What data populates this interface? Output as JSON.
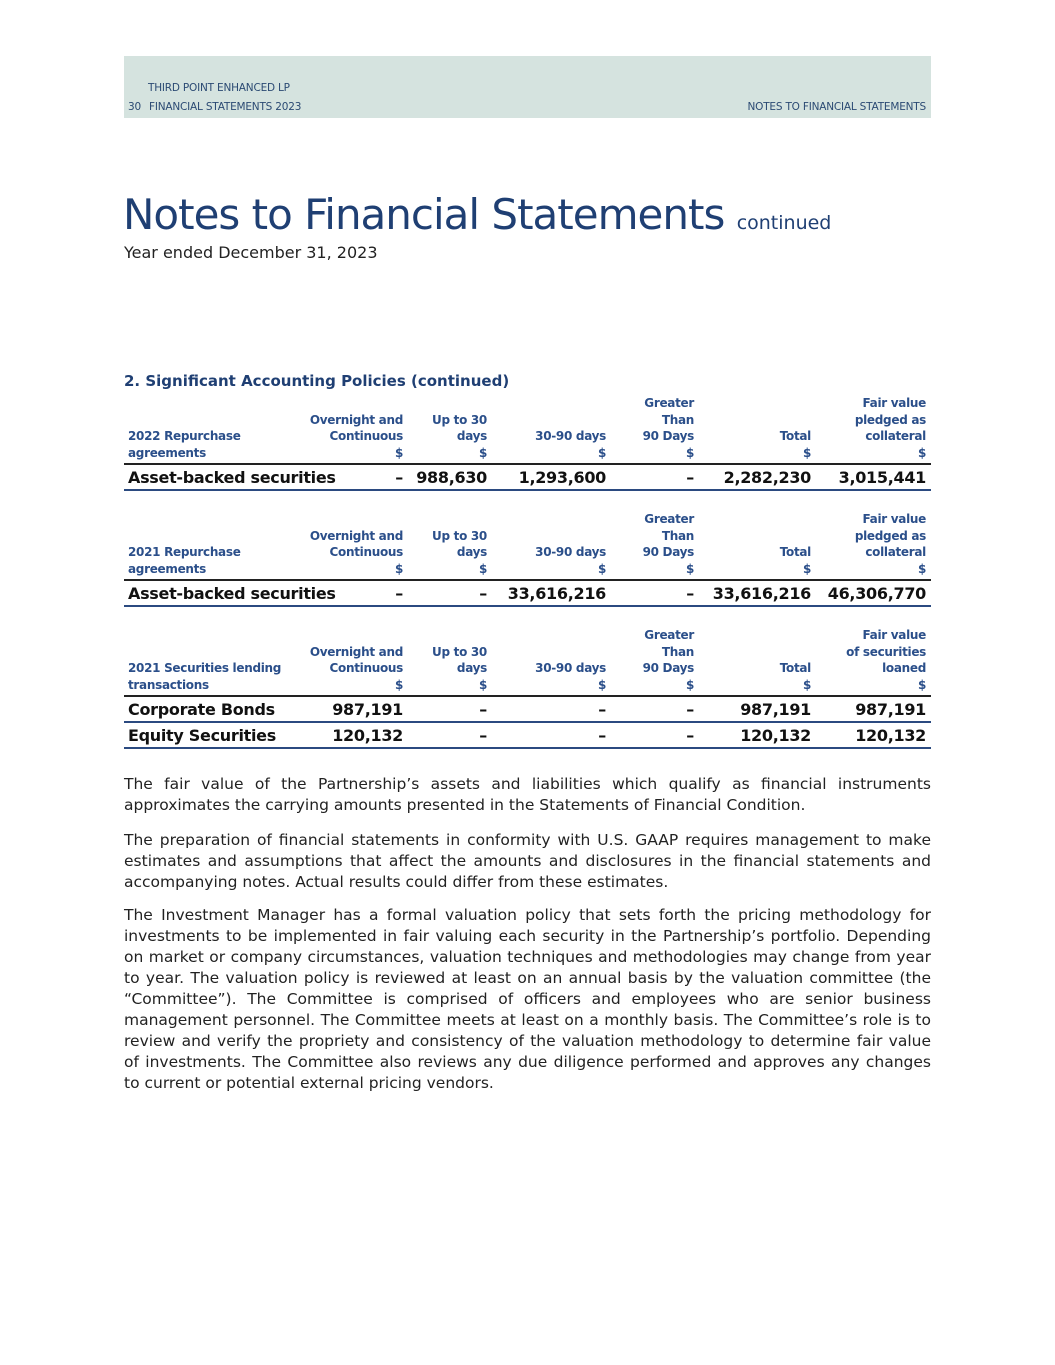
{
  "header": {
    "company": "THIRD POINT ENHANCED LP",
    "page_number": "30",
    "report": "FINANCIAL STATEMENTS 2023",
    "section": "NOTES TO FINANCIAL STATEMENTS",
    "band_color": "#d5e3df"
  },
  "title": {
    "main": "Notes to Financial Statements",
    "suffix": "continued",
    "subtitle": "Year ended December 31, 2023"
  },
  "section_heading": "2. Significant Accounting Policies (continued)",
  "tables": [
    {
      "headers": [
        "2022 Repurchase\nagreements",
        "Overnight and\nContinuous\n$",
        "Up to 30\ndays\n$",
        "30-90 days\n$",
        "Greater\nThan\n90 Days\n$",
        "Total\n$",
        "Fair value\npledged as\ncollateral\n$"
      ],
      "rows": [
        [
          "Asset-backed securities",
          "–",
          "988,630",
          "1,293,600",
          "–",
          "2,282,230",
          "3,015,441"
        ]
      ]
    },
    {
      "headers": [
        "2021 Repurchase\nagreements",
        "Overnight and\nContinuous\n$",
        "Up to 30\ndays\n$",
        "30-90 days\n$",
        "Greater\nThan\n90 Days\n$",
        "Total\n$",
        "Fair value\npledged as\ncollateral\n$"
      ],
      "rows": [
        [
          "Asset-backed securities",
          "–",
          "–",
          "33,616,216",
          "–",
          "33,616,216",
          "46,306,770"
        ]
      ]
    },
    {
      "headers": [
        "2021 Securities lending\ntransactions",
        "Overnight and\nContinuous\n$",
        "Up to 30\ndays\n$",
        "30-90 days\n$",
        "Greater\nThan\n90 Days\n$",
        "Total\n$",
        "Fair value\nof securities\nloaned\n$"
      ],
      "rows": [
        [
          "Corporate Bonds",
          "987,191",
          "–",
          "–",
          "–",
          "987,191",
          "987,191"
        ],
        [
          "Equity Securities",
          "120,132",
          "–",
          "–",
          "–",
          "120,132",
          "120,132"
        ]
      ]
    }
  ],
  "paragraphs": [
    "The fair value of the Partnership’s assets and liabilities which qualify as financial instruments approximates the carrying amounts presented in the Statements of Financial Condition.",
    "The preparation of financial statements in conformity with U.S. GAAP requires management to make estimates and assumptions that affect the amounts and disclosures in the financial statements and accompanying notes. Actual results could differ from these estimates.",
    "The Investment Manager has a formal valuation policy that sets forth the pricing methodology for investments to be implemented in fair valuing each security in the Partnership’s portfolio. Depending on market or company circumstances, valuation techniques and methodologies may change from year to year. The valuation policy is reviewed at least on an annual basis by the valuation committee (the “Committee”). The Committee is comprised of officers and employees who are senior business management personnel. The Committee meets at least on a monthly basis. The Committee’s role is to review and verify the propriety and consistency of the valuation methodology to determine fair value of investments. The Committee also reviews any due diligence performed and approves any changes to current or potential external pricing vendors."
  ]
}
